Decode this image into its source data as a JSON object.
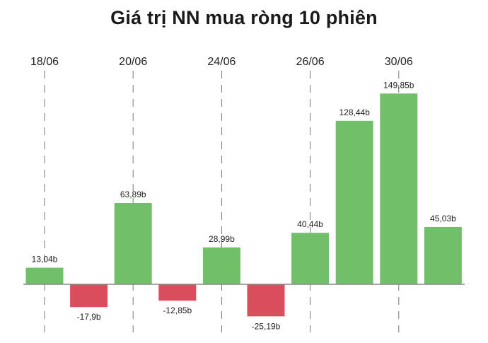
{
  "chart_data": {
    "type": "bar",
    "title": "Giá trị NN mua ròng 10 phiên",
    "xlabel": "",
    "ylabel": "",
    "values": [
      13.04,
      -17.9,
      63.89,
      -12.85,
      28.99,
      -25.19,
      40.44,
      128.44,
      149.85,
      45.03
    ],
    "data_labels": [
      "13,04b",
      "-17,9b",
      "63,89b",
      "-12,85b",
      "28,99b",
      "-25,19b",
      "40,44b",
      "128,44b",
      "149,85b",
      "45,03b"
    ],
    "x_ticks": [
      {
        "bar_index": 0,
        "label": "18/06"
      },
      {
        "bar_index": 2,
        "label": "20/06"
      },
      {
        "bar_index": 4,
        "label": "24/06"
      },
      {
        "bar_index": 6,
        "label": "26/06"
      },
      {
        "bar_index": 8,
        "label": "30/06"
      }
    ],
    "ylim": [
      -25.19,
      149.85
    ],
    "grid": "vertical dashed lines at labeled dates",
    "colors": {
      "positive": "#72bf6a",
      "negative": "#d94d5c",
      "axis": "#888888",
      "gridline": "#777777"
    }
  }
}
